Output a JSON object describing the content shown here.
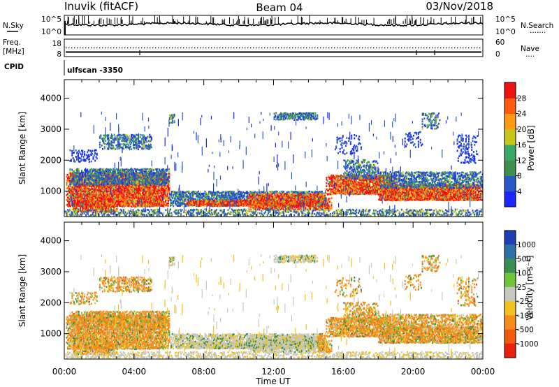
{
  "header": {
    "station": "Inuvik (fitACF)",
    "beam": "Beam 04",
    "date": "03/Nov/2018"
  },
  "sky_panel": {
    "left_label": "N.Sky",
    "right_label": "N.Search",
    "right_dots": "·······",
    "ytop": "10^5",
    "ybot": "10^0"
  },
  "freq_panel": {
    "left_label_1": "Freq.",
    "left_label_2": "[MHz]",
    "ytop": "18",
    "ybot": "8",
    "right_top": "60",
    "right_bot": "0",
    "right_label": "Nave",
    "right_dots": "····"
  },
  "cpid": {
    "label": "CPID",
    "program": "ulfscan  -3350"
  },
  "chart_data": [
    {
      "type": "heatmap",
      "title": "",
      "ylabel": "Slant Range [km]",
      "xlabel": "",
      "x_ticks": [
        "00:00",
        "04:00",
        "08:00",
        "12:00",
        "16:00",
        "20:00",
        "00:00"
      ],
      "y_ticks": [
        1000,
        2000,
        3000,
        4000
      ],
      "ylim": [
        180,
        4600
      ],
      "colorbar": {
        "label": "Power [dB]",
        "ticks": [
          "4",
          "8",
          "12",
          "16",
          "20",
          "24",
          "28"
        ],
        "colors": [
          "#1a25ff",
          "#2b58c9",
          "#3f8f4f",
          "#3aa86a",
          "#c7c71a",
          "#ff9b12",
          "#ff5a10",
          "#ef1212"
        ]
      }
    },
    {
      "type": "heatmap",
      "title": "",
      "ylabel": "Slant Range [km]",
      "xlabel": "Time UT",
      "x_ticks": [
        "00:00",
        "04:00",
        "08:00",
        "12:00",
        "16:00",
        "20:00",
        "00:00"
      ],
      "y_ticks": [
        1000,
        2000,
        3000,
        4000
      ],
      "ylim": [
        180,
        4600
      ],
      "colorbar": {
        "label": "Velocity [m s⁻¹]",
        "ticks": [
          "1000",
          "500",
          "100",
          "25",
          "-25",
          "-100",
          "-500",
          "-1000"
        ],
        "colors": [
          "#1f3fb8",
          "#2e6fa8",
          "#3a8f50",
          "#6fc43a",
          "#c8c8c0",
          "#f1c21b",
          "#f68b1e",
          "#ee5b10",
          "#ea1f0c"
        ]
      }
    }
  ]
}
